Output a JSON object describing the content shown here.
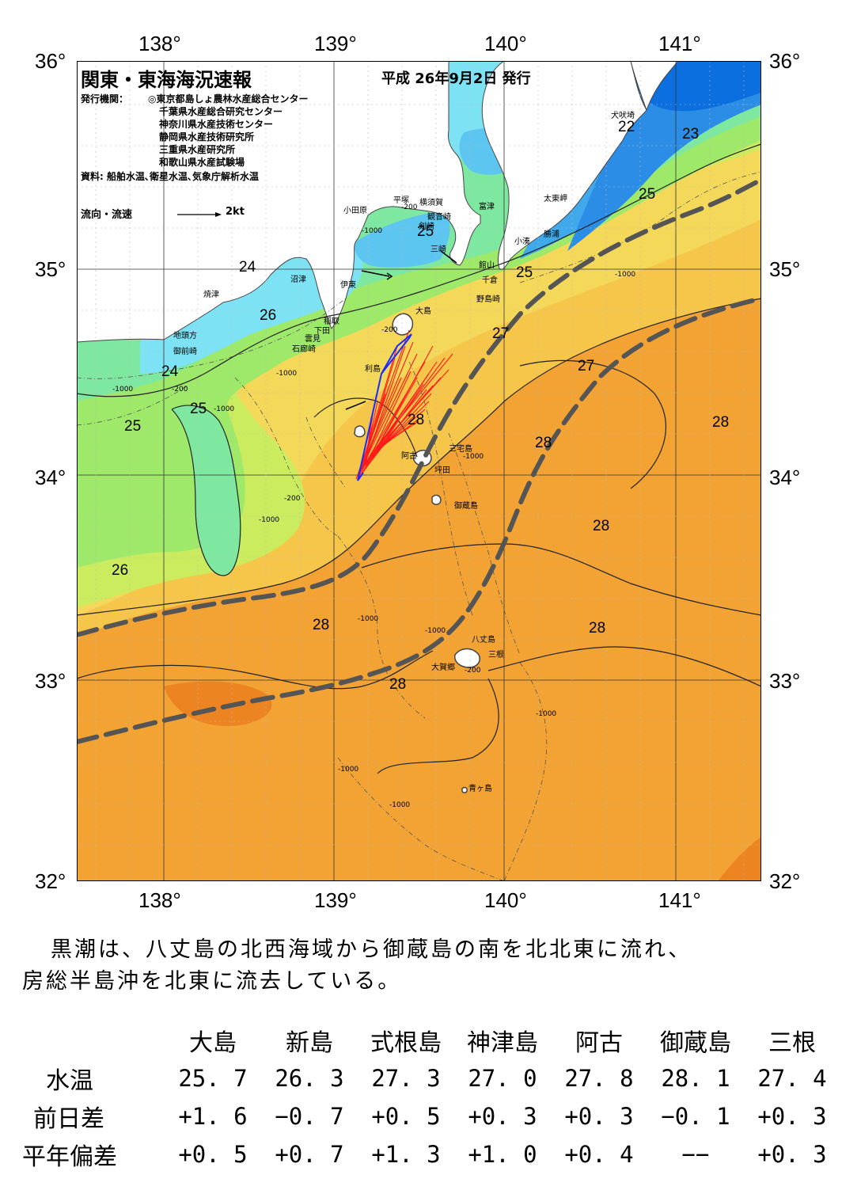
{
  "map": {
    "title": "関東・東海海況速報",
    "date": "平成 26年9月2日 発行",
    "issuers_label": "発行機関：",
    "issuers": [
      "◎東京都島しょ農林水産総合センター",
      "千葉県水産総合研究センター",
      "神奈川県水産技術センター",
      "静岡県水産技術研究所",
      "三重県水産研究所",
      "和歌山県水産試験場"
    ],
    "sources": "資料: 船舶水温､衛星水温､気象庁解析水温",
    "flow_legend": "流向・流速",
    "flow_scale": "2kt",
    "lon_labels": [
      "138°",
      "139°",
      "140°",
      "141°"
    ],
    "lat_labels": [
      "36°",
      "35°",
      "34°",
      "33°",
      "32°"
    ],
    "isotherm_labels": [
      "22",
      "23",
      "25",
      "25",
      "25",
      "24",
      "26",
      "24",
      "25",
      "25",
      "27",
      "27",
      "28",
      "28",
      "28",
      "28",
      "28",
      "28",
      "26",
      "28"
    ],
    "depth_labels": [
      "-1000",
      "-200",
      "-1000",
      "-200",
      "-1000",
      "-1000",
      "-200",
      "-1000",
      "-1000",
      "-1000",
      "-1000",
      "-1000",
      "-200",
      "-1000",
      "-200",
      "-1000",
      "-1000"
    ],
    "places": [
      "犬吠埼",
      "太東岬",
      "勝浦",
      "小湊",
      "館山",
      "千倉",
      "野島崎",
      "富津",
      "観音崎",
      "横須賀",
      "平塚",
      "小田原",
      "剣崎",
      "三崎",
      "沼津",
      "伊東",
      "大島",
      "稲取",
      "下田",
      "雲見",
      "石廊崎",
      "焼津",
      "地頭方",
      "御前崎",
      "利島",
      "三宅島",
      "阿古",
      "坪田",
      "御蔵島",
      "八丈島",
      "三根",
      "大賀郷",
      "青ヶ島"
    ],
    "colors": {
      "land": "#ffffff",
      "t18": "#0b6fe0",
      "t20": "#2b8de6",
      "t21": "#3fa9ec",
      "t22": "#5cc6f0",
      "t23": "#7de3f4",
      "t24": "#7fe8a0",
      "t25": "#9ee86a",
      "t26": "#cbec5e",
      "t27": "#f4d85a",
      "t27b": "#f6c64a",
      "t28": "#f2a334",
      "t29": "#ec8422",
      "kuroshio": "#555555",
      "flow_red": "#ff1a1a",
      "flow_blue": "#1a2cff"
    }
  },
  "summary": [
    "黒潮は、八丈島の北西海域から御蔵島の南を北北東に流れ、",
    "房総半島沖を北東に流去している。"
  ],
  "table": {
    "headers": [
      "",
      "大島",
      "新島",
      "式根島",
      "神津島",
      "阿古",
      "御蔵島",
      "三根"
    ],
    "rows": [
      {
        "label": "水温",
        "values": [
          "25. 7",
          "26. 3",
          "27. 3",
          "27. 0",
          "27. 8",
          "28. 1",
          "27. 4"
        ]
      },
      {
        "label": "前日差",
        "values": [
          "+1. 6",
          "−0. 7",
          "+0. 5",
          "+0. 3",
          "+0. 3",
          "−0. 1",
          "+0. 3"
        ]
      },
      {
        "label": "平年偏差",
        "values": [
          "+0. 5",
          "+0. 7",
          "+1. 3",
          "+1. 0",
          "+0. 4",
          "−−",
          "+0. 3"
        ]
      }
    ]
  }
}
